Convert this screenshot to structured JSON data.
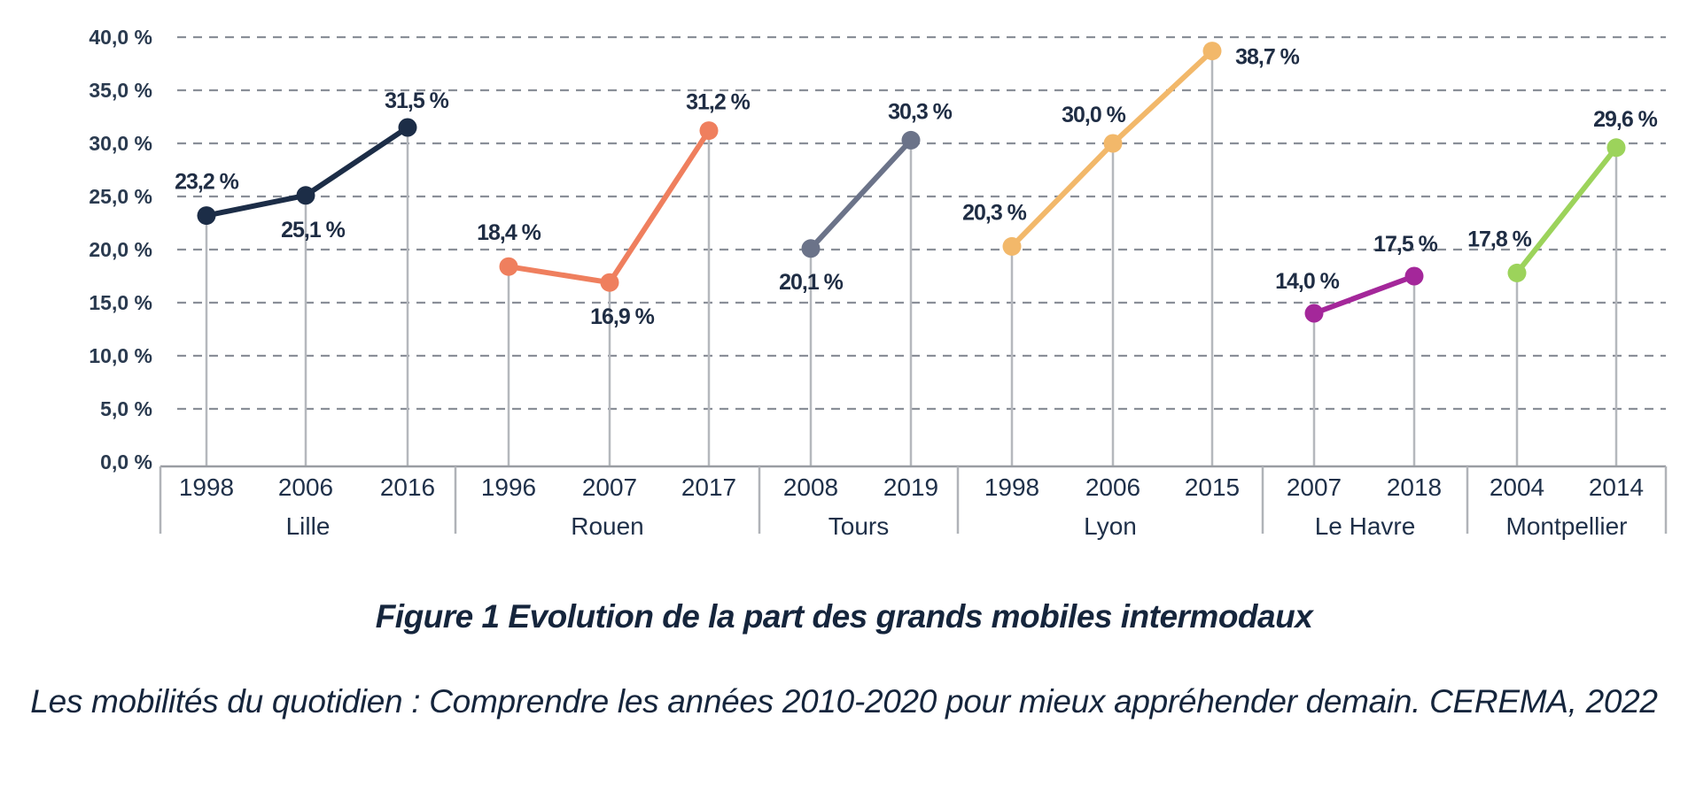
{
  "chart_data": {
    "type": "line",
    "ylim": [
      0,
      40
    ],
    "yticks": [
      "0,0 %",
      "5,0 %",
      "10,0 %",
      "15,0 %",
      "20,0 %",
      "25,0 %",
      "30,0 %",
      "35,0 %",
      "40,0 %"
    ],
    "ytick_values": [
      0,
      5,
      10,
      15,
      20,
      25,
      30,
      35,
      40
    ],
    "grid": true,
    "series": [
      {
        "name": "Lille",
        "color": "#1c2d47",
        "x": [
          "1998",
          "2006",
          "2016"
        ],
        "values": [
          23.2,
          25.1,
          31.5
        ],
        "labels": [
          "23,2 %",
          "25,1 %",
          "31,5 %"
        ]
      },
      {
        "name": "Rouen",
        "color": "#ef7f5e",
        "x": [
          "1996",
          "2007",
          "2017"
        ],
        "values": [
          18.4,
          16.9,
          31.2
        ],
        "labels": [
          "18,4 %",
          "16,9 %",
          "31,2 %"
        ]
      },
      {
        "name": "Tours",
        "color": "#6b7389",
        "x": [
          "2008",
          "2019"
        ],
        "values": [
          20.1,
          30.3
        ],
        "labels": [
          "20,1 %",
          "30,3 %"
        ]
      },
      {
        "name": "Lyon",
        "color": "#f2b86a",
        "x": [
          "1998",
          "2006",
          "2015"
        ],
        "values": [
          20.3,
          30.0,
          38.7
        ],
        "labels": [
          "20,3 %",
          "30,0 %",
          "38,7 %"
        ]
      },
      {
        "name": "Le Havre",
        "color": "#a4279a",
        "x": [
          "2007",
          "2018"
        ],
        "values": [
          14.0,
          17.5
        ],
        "labels": [
          "14,0 %",
          "17,5 %"
        ]
      },
      {
        "name": "Montpellier",
        "color": "#9cd35b",
        "x": [
          "2004",
          "2014"
        ],
        "values": [
          17.8,
          29.6
        ],
        "labels": [
          "17,8 %",
          "29,6 %"
        ]
      }
    ]
  },
  "caption": "Figure 1 Evolution de la part des grands mobiles intermodaux",
  "source": "Les mobilités du quotidien : Comprendre les années 2010-2020 pour mieux appréhender demain. CEREMA, 2022"
}
